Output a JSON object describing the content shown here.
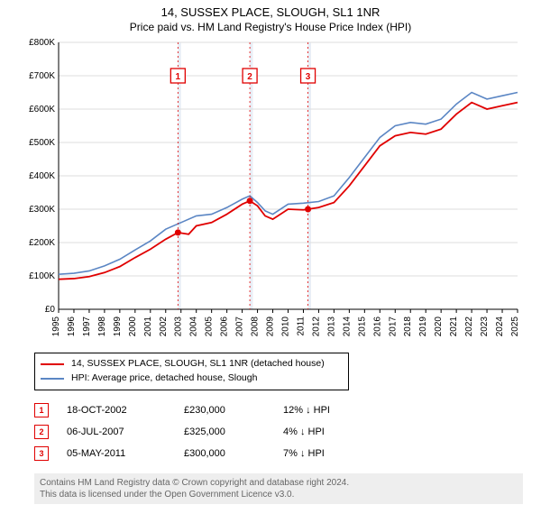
{
  "title": "14, SUSSEX PLACE, SLOUGH, SL1 1NR",
  "subtitle": "Price paid vs. HM Land Registry's House Price Index (HPI)",
  "chart": {
    "type": "line",
    "background_color": "#ffffff",
    "grid_color": "#dddddd",
    "shade_color": "#e8eef6",
    "axis_color": "#000000",
    "label_font_size": 10,
    "x_years": [
      "1995",
      "1996",
      "1997",
      "1998",
      "1999",
      "2000",
      "2001",
      "2002",
      "2003",
      "2004",
      "2005",
      "2006",
      "2007",
      "2008",
      "2009",
      "2010",
      "2011",
      "2012",
      "2013",
      "2014",
      "2015",
      "2016",
      "2017",
      "2018",
      "2019",
      "2020",
      "2021",
      "2022",
      "2023",
      "2024",
      "2025"
    ],
    "ylim": [
      0,
      800000
    ],
    "ytick_step": 100000,
    "ytick_prefix": "£",
    "ytick_suffix": "K",
    "shade_bands": [
      {
        "from": 2002.8,
        "to": 2003.0
      },
      {
        "from": 2007.5,
        "to": 2007.7
      },
      {
        "from": 2011.3,
        "to": 2011.5
      }
    ],
    "series": [
      {
        "name": "property",
        "color": "#e00000",
        "width": 1.8,
        "points": [
          [
            1995.0,
            90000
          ],
          [
            1996.0,
            92000
          ],
          [
            1997.0,
            98000
          ],
          [
            1998.0,
            110000
          ],
          [
            1999.0,
            128000
          ],
          [
            2000.0,
            155000
          ],
          [
            2001.0,
            180000
          ],
          [
            2002.0,
            210000
          ],
          [
            2002.8,
            230000
          ],
          [
            2003.5,
            225000
          ],
          [
            2004.0,
            250000
          ],
          [
            2005.0,
            260000
          ],
          [
            2006.0,
            285000
          ],
          [
            2007.0,
            315000
          ],
          [
            2007.5,
            325000
          ],
          [
            2008.0,
            310000
          ],
          [
            2008.5,
            280000
          ],
          [
            2009.0,
            270000
          ],
          [
            2010.0,
            300000
          ],
          [
            2011.0,
            298000
          ],
          [
            2011.3,
            300000
          ],
          [
            2012.0,
            305000
          ],
          [
            2013.0,
            320000
          ],
          [
            2014.0,
            370000
          ],
          [
            2015.0,
            430000
          ],
          [
            2016.0,
            490000
          ],
          [
            2017.0,
            520000
          ],
          [
            2018.0,
            530000
          ],
          [
            2019.0,
            525000
          ],
          [
            2020.0,
            540000
          ],
          [
            2021.0,
            585000
          ],
          [
            2022.0,
            620000
          ],
          [
            2023.0,
            600000
          ],
          [
            2024.0,
            610000
          ],
          [
            2025.0,
            620000
          ]
        ]
      },
      {
        "name": "hpi",
        "color": "#5b86c4",
        "width": 1.6,
        "points": [
          [
            1995.0,
            105000
          ],
          [
            1996.0,
            108000
          ],
          [
            1997.0,
            115000
          ],
          [
            1998.0,
            130000
          ],
          [
            1999.0,
            150000
          ],
          [
            2000.0,
            178000
          ],
          [
            2001.0,
            205000
          ],
          [
            2002.0,
            240000
          ],
          [
            2003.0,
            260000
          ],
          [
            2004.0,
            280000
          ],
          [
            2005.0,
            285000
          ],
          [
            2006.0,
            305000
          ],
          [
            2007.0,
            330000
          ],
          [
            2007.5,
            340000
          ],
          [
            2008.0,
            320000
          ],
          [
            2008.5,
            295000
          ],
          [
            2009.0,
            285000
          ],
          [
            2010.0,
            315000
          ],
          [
            2011.0,
            318000
          ],
          [
            2012.0,
            323000
          ],
          [
            2013.0,
            340000
          ],
          [
            2014.0,
            395000
          ],
          [
            2015.0,
            455000
          ],
          [
            2016.0,
            515000
          ],
          [
            2017.0,
            550000
          ],
          [
            2018.0,
            560000
          ],
          [
            2019.0,
            555000
          ],
          [
            2020.0,
            570000
          ],
          [
            2021.0,
            615000
          ],
          [
            2022.0,
            650000
          ],
          [
            2023.0,
            630000
          ],
          [
            2024.0,
            640000
          ],
          [
            2025.0,
            650000
          ]
        ]
      }
    ],
    "markers": [
      {
        "n": "1",
        "x": 2002.8,
        "y": 230000,
        "label_y": 700000
      },
      {
        "n": "2",
        "x": 2007.5,
        "y": 325000,
        "label_y": 700000
      },
      {
        "n": "3",
        "x": 2011.3,
        "y": 300000,
        "label_y": 700000
      }
    ]
  },
  "legend": {
    "items": [
      {
        "color": "#e00000",
        "label": "14, SUSSEX PLACE, SLOUGH, SL1 1NR (detached house)"
      },
      {
        "color": "#5b86c4",
        "label": "HPI: Average price, detached house, Slough"
      }
    ]
  },
  "transactions": [
    {
      "n": "1",
      "date": "18-OCT-2002",
      "price": "£230,000",
      "diff": "12% ↓ HPI"
    },
    {
      "n": "2",
      "date": "06-JUL-2007",
      "price": "£325,000",
      "diff": "4% ↓ HPI"
    },
    {
      "n": "3",
      "date": "05-MAY-2011",
      "price": "£300,000",
      "diff": "7% ↓ HPI"
    }
  ],
  "footer": {
    "line1": "Contains HM Land Registry data © Crown copyright and database right 2024.",
    "line2": "This data is licensed under the Open Government Licence v3.0."
  }
}
